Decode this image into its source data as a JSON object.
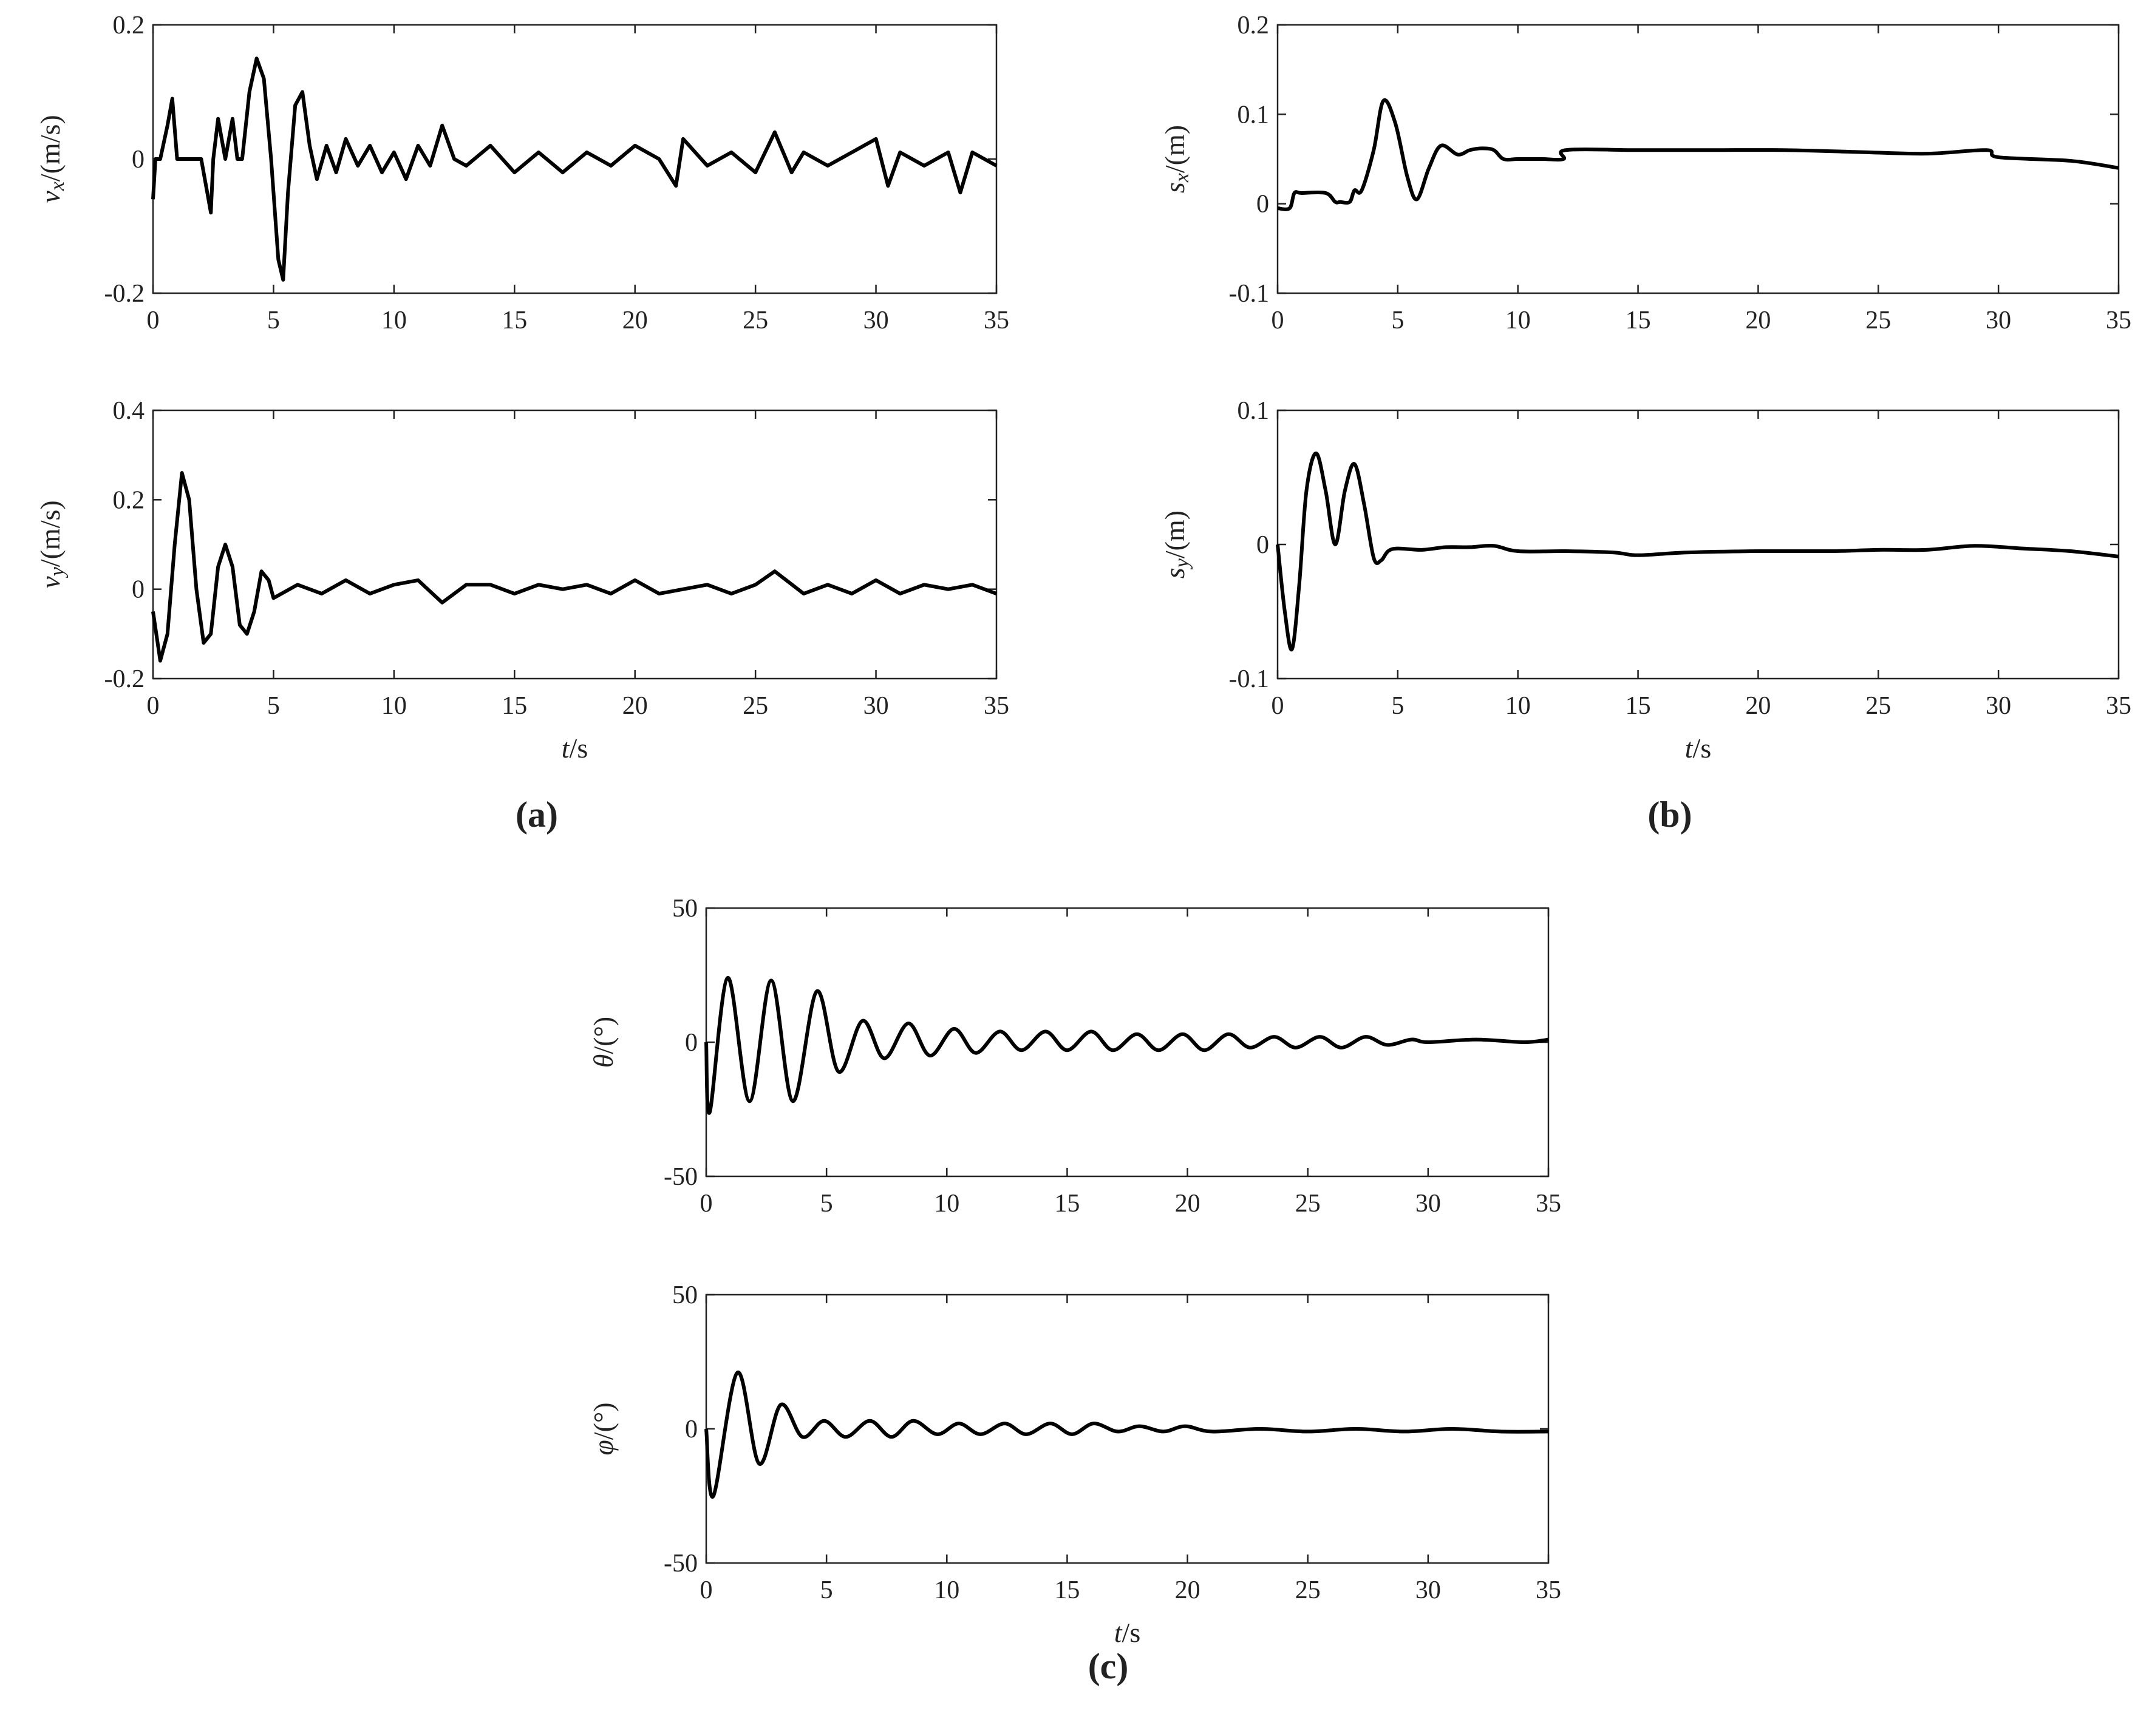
{
  "captions": [
    "(a)",
    "(b)",
    "(c)"
  ],
  "chart_data": [
    {
      "type": "line",
      "ylabel": {
        "main": "v",
        "sub": "x",
        "unit": "/(m/s)"
      },
      "color": "#000000",
      "xlim": [
        0,
        35
      ],
      "xticks": [
        0,
        5,
        10,
        15,
        20,
        25,
        30,
        35
      ],
      "ylim": [
        -0.2,
        0.2
      ],
      "yticks": [
        -0.2,
        0,
        0.2
      ],
      "x": [
        0,
        0.1,
        0.3,
        0.6,
        0.8,
        1.0,
        1.5,
        2.0,
        2.4,
        2.5,
        2.7,
        3.0,
        3.3,
        3.5,
        3.7,
        4.0,
        4.3,
        4.6,
        4.9,
        5.2,
        5.4,
        5.6,
        5.9,
        6.2,
        6.5,
        6.8,
        7.2,
        7.6,
        8.0,
        8.5,
        9,
        9.5,
        10,
        10.5,
        11,
        11.5,
        12,
        12.5,
        13,
        14,
        15,
        16,
        17,
        18,
        19,
        20,
        21,
        21.7,
        22,
        23,
        24,
        25,
        25.8,
        26.5,
        27,
        28,
        29,
        30,
        30.5,
        31,
        32,
        33,
        33.5,
        34,
        35
      ],
      "values": [
        -0.06,
        0,
        0,
        0.05,
        0.09,
        0,
        0,
        0,
        -0.08,
        0,
        0.06,
        0,
        0.06,
        0,
        0,
        0.1,
        0.15,
        0.12,
        0,
        -0.15,
        -0.18,
        -0.05,
        0.08,
        0.1,
        0.02,
        -0.03,
        0.02,
        -0.02,
        0.03,
        -0.01,
        0.02,
        -0.02,
        0.01,
        -0.03,
        0.02,
        -0.01,
        0.05,
        0,
        -0.01,
        0.02,
        -0.02,
        0.01,
        -0.02,
        0.01,
        -0.01,
        0.02,
        0,
        -0.04,
        0.03,
        -0.01,
        0.01,
        -0.02,
        0.04,
        -0.02,
        0.01,
        -0.01,
        0.01,
        0.03,
        -0.04,
        0.01,
        -0.01,
        0.01,
        -0.05,
        0.01,
        -0.01
      ]
    },
    {
      "type": "line",
      "ylabel": {
        "main": "v",
        "sub": "y",
        "unit": "/(m/s)"
      },
      "xlabel": {
        "main": "t",
        "unit": "/s"
      },
      "color": "#000000",
      "xlim": [
        0,
        35
      ],
      "xticks": [
        0,
        5,
        10,
        15,
        20,
        25,
        30,
        35
      ],
      "ylim": [
        -0.2,
        0.4
      ],
      "yticks": [
        -0.2,
        0,
        0.2,
        0.4
      ],
      "x": [
        0,
        0.3,
        0.6,
        0.9,
        1.2,
        1.5,
        1.8,
        2.1,
        2.4,
        2.7,
        3.0,
        3.3,
        3.6,
        3.9,
        4.2,
        4.5,
        4.8,
        5,
        6,
        7,
        8,
        9,
        10,
        11,
        12,
        13,
        14,
        15,
        16,
        17,
        18,
        19,
        20,
        21,
        22,
        23,
        24,
        25,
        25.8,
        27,
        28,
        29,
        30,
        31,
        32,
        33,
        34,
        35
      ],
      "values": [
        -0.05,
        -0.16,
        -0.1,
        0.1,
        0.26,
        0.2,
        0,
        -0.12,
        -0.1,
        0.05,
        0.1,
        0.05,
        -0.08,
        -0.1,
        -0.05,
        0.04,
        0.02,
        -0.02,
        0.01,
        -0.01,
        0.02,
        -0.01,
        0.01,
        0.02,
        -0.03,
        0.01,
        0.01,
        -0.01,
        0.01,
        0,
        0.01,
        -0.01,
        0.02,
        -0.01,
        0,
        0.01,
        -0.01,
        0.01,
        0.04,
        -0.01,
        0.01,
        -0.01,
        0.02,
        -0.01,
        0.01,
        0,
        0.01,
        -0.01
      ]
    },
    {
      "type": "line",
      "ylabel": {
        "main": "s",
        "sub": "x",
        "unit": "/(m)"
      },
      "color": "#000000",
      "smooth": true,
      "xlim": [
        0,
        35
      ],
      "xticks": [
        0,
        5,
        10,
        15,
        20,
        25,
        30,
        35
      ],
      "ylim": [
        -0.1,
        0.2
      ],
      "yticks": [
        -0.1,
        0,
        0.1,
        0.2
      ],
      "x": [
        0,
        0.5,
        0.7,
        1.0,
        2.0,
        2.4,
        2.6,
        3.0,
        3.2,
        3.5,
        4.0,
        4.4,
        4.9,
        5.4,
        5.8,
        6.3,
        6.8,
        7.5,
        8.0,
        8.5,
        9.0,
        9.4,
        10,
        11,
        11.9,
        12,
        15,
        18,
        21,
        24,
        27,
        29.5,
        30,
        33,
        35
      ],
      "values": [
        -0.005,
        -0.005,
        0.012,
        0.012,
        0.012,
        0.002,
        0.002,
        0.002,
        0.015,
        0.015,
        0.06,
        0.115,
        0.09,
        0.03,
        0.005,
        0.04,
        0.065,
        0.055,
        0.06,
        0.062,
        0.06,
        0.05,
        0.05,
        0.05,
        0.05,
        0.06,
        0.06,
        0.06,
        0.06,
        0.058,
        0.056,
        0.06,
        0.052,
        0.048,
        0.04
      ]
    },
    {
      "type": "line",
      "ylabel": {
        "main": "s",
        "sub": "y",
        "unit": "/(m)"
      },
      "xlabel": {
        "main": "t",
        "unit": "/s"
      },
      "color": "#000000",
      "smooth": true,
      "xlim": [
        0,
        35
      ],
      "xticks": [
        0,
        5,
        10,
        15,
        20,
        25,
        30,
        35
      ],
      "ylim": [
        -0.1,
        0.1
      ],
      "yticks": [
        -0.1,
        0,
        0.1
      ],
      "x": [
        0,
        0.3,
        0.6,
        0.9,
        1.2,
        1.6,
        2.0,
        2.4,
        2.8,
        3.2,
        3.6,
        4.0,
        4.3,
        4.6,
        5,
        6,
        7,
        8,
        9,
        10,
        12,
        14,
        15,
        17,
        20,
        23,
        25,
        27,
        29,
        31,
        33,
        35
      ],
      "values": [
        0,
        -0.05,
        -0.078,
        -0.03,
        0.04,
        0.068,
        0.04,
        0,
        0.04,
        0.06,
        0.03,
        -0.01,
        -0.012,
        -0.005,
        -0.003,
        -0.004,
        -0.002,
        -0.002,
        -0.001,
        -0.005,
        -0.005,
        -0.006,
        -0.008,
        -0.006,
        -0.005,
        -0.005,
        -0.004,
        -0.004,
        -0.001,
        -0.003,
        -0.005,
        -0.009
      ]
    },
    {
      "type": "line",
      "ylabel": {
        "main": "θ",
        "unit": "/(°)"
      },
      "color": "#000000",
      "smooth": true,
      "xlim": [
        0,
        35
      ],
      "xticks": [
        0,
        5,
        10,
        15,
        20,
        25,
        30,
        35
      ],
      "ylim": [
        -50,
        50
      ],
      "yticks": [
        -50,
        0,
        50
      ],
      "x": [
        0,
        0.15,
        0.9,
        1.8,
        2.7,
        3.6,
        4.6,
        5.5,
        6.5,
        7.4,
        8.4,
        9.3,
        10.3,
        11.2,
        12.2,
        13.1,
        14.1,
        15.0,
        16.0,
        16.9,
        17.9,
        18.8,
        19.8,
        20.7,
        21.7,
        22.6,
        23.6,
        24.5,
        25.5,
        26.4,
        27.4,
        28.3,
        29.3,
        30,
        32,
        34,
        35
      ],
      "values": [
        0,
        -26,
        24,
        -22,
        23,
        -22,
        19,
        -11,
        8,
        -6,
        7,
        -5,
        5,
        -4,
        4,
        -3,
        4,
        -3,
        4,
        -3,
        3,
        -3,
        3,
        -3,
        3,
        -2,
        2,
        -2,
        2,
        -2,
        2,
        -1,
        1,
        0,
        1,
        0,
        1
      ]
    },
    {
      "type": "line",
      "ylabel": {
        "main": "φ",
        "unit": "/(°)"
      },
      "xlabel": {
        "main": "t",
        "unit": "/s"
      },
      "color": "#000000",
      "smooth": true,
      "xlim": [
        0,
        35
      ],
      "xticks": [
        0,
        5,
        10,
        15,
        20,
        25,
        30,
        35
      ],
      "ylim": [
        -50,
        50
      ],
      "yticks": [
        -50,
        0,
        50
      ],
      "x": [
        0,
        0.3,
        1.3,
        2.2,
        3.1,
        4.0,
        4.9,
        5.8,
        6.8,
        7.7,
        8.6,
        9.6,
        10.5,
        11.4,
        12.4,
        13.3,
        14.3,
        15.2,
        16.1,
        17.1,
        18.0,
        19.0,
        19.9,
        21,
        23,
        25,
        27,
        29,
        31,
        33,
        35
      ],
      "values": [
        0,
        -25,
        21,
        -13,
        9,
        -3,
        3,
        -3,
        3,
        -3,
        3,
        -2,
        2,
        -2,
        2,
        -2,
        2,
        -2,
        2,
        -1,
        1,
        -1,
        1,
        -1,
        0,
        -1,
        0,
        -1,
        0,
        -1,
        -1
      ]
    }
  ]
}
